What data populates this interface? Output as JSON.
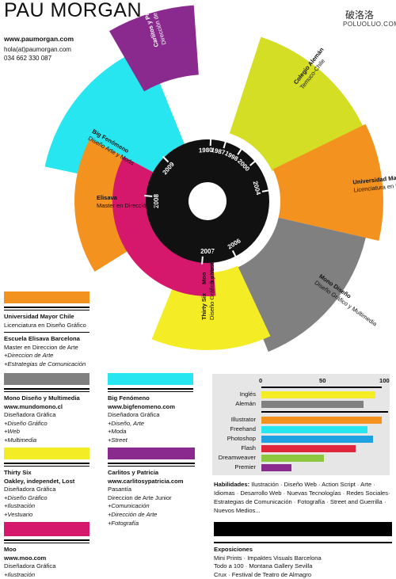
{
  "header": {
    "name": "PAU MORGAN",
    "site": "www.paumorgan.com",
    "email": "hola(at)paumorgan.com",
    "phone": "034 662 330 087"
  },
  "watermark": {
    "line1": "破洛洛",
    "line2": "POLUOLUO.COM"
  },
  "wheel": {
    "years": [
      "1980",
      "1987",
      "1998",
      "2000",
      "2004",
      "2006",
      "2007",
      "2008",
      "2009"
    ],
    "segments": [
      {
        "title": "Carlitos y Patricia",
        "subtitle": "Dirección de Arte y Comunicación",
        "color": "#8b2a8e"
      },
      {
        "title": "Colegio Alemán",
        "subtitle": "Temuco-Chile",
        "color": "#d4de24"
      },
      {
        "title": "Universidad Mayor",
        "subtitle": "Licenciatura en Diseño Gráfico",
        "color": "#f3921f"
      },
      {
        "title": "Mono Diseño",
        "subtitle": "Diseño Gráfico y Multimedia",
        "color": "#808080"
      },
      {
        "title": "Thirty Six",
        "subtitle": "Diseño Gráfico y Vestuario",
        "color": "#f4ec25"
      },
      {
        "title": "Moo",
        "subtitle": "Ilustración",
        "color": "#d6186c"
      },
      {
        "title": "Elisava",
        "subtitle": "Master en Dirección de Arte",
        "color": "#f3921f"
      },
      {
        "title": "Big Fenómeno",
        "subtitle": "Diseño Arte y Moda",
        "color": "#27e6f0"
      }
    ]
  },
  "cards": [
    {
      "color": "#f3921f",
      "lines": [
        "Universidad Mayor Chile",
        "Licenciatura en Diseño Gráfico"
      ],
      "lines2": [
        "Escuela Elisava Barcelona",
        "Master en Direccion de Arte",
        "+Direccion de Arte",
        "+Estrategias de Comunicación"
      ]
    },
    {
      "color": "#808080",
      "lines": [
        "Mono Diseño y Multimedia",
        "www.mundomono.cl",
        "Diseñadora Gráfica",
        "+Diseño Gráfico",
        "+Web",
        "+Multimedia"
      ]
    },
    {
      "color": "#27e6f0",
      "lines": [
        "Big Fenómeno",
        "www.bigfenomeno.com",
        "Diseñadora Gráfica",
        "+Diseño, Arte",
        "+Moda",
        "+Street"
      ]
    },
    {
      "color": "#f4ec25",
      "lines": [
        "Thirty Six",
        "Oakley, independet, Lost",
        "Diseñadora Gráfica",
        "+Diseño Gráfico",
        "+Ilustración",
        "+Vestuario"
      ]
    },
    {
      "color": "#8b2a8e",
      "lines": [
        "Carlitos y Patricia",
        "www.carlitosypatricia.com",
        "Pasantía",
        "Direccion de Arte Junior",
        "+Comunicación",
        "+Dirección de Arte",
        "+Fotografía"
      ]
    },
    {
      "color": "#d6186c",
      "lines": [
        "Moo",
        "www.moo.com",
        "Diseñadora Gráfica",
        "+Ilustración"
      ]
    }
  ],
  "skills": {
    "ticks": [
      "0",
      "50",
      "100"
    ],
    "languages": [
      {
        "name": "Inglés",
        "value": 95,
        "color": "#f4ec25"
      },
      {
        "name": "Alemán",
        "value": 85,
        "color": "#808080"
      }
    ],
    "software": [
      {
        "name": "Illustrator",
        "value": 100,
        "color": "#f3921f"
      },
      {
        "name": "Freehand",
        "value": 88,
        "color": "#27e6f0"
      },
      {
        "name": "Photoshop",
        "value": 93,
        "color": "#1fa0e0"
      },
      {
        "name": "Flash",
        "value": 78,
        "color": "#e0263a"
      },
      {
        "name": "Dreamweaver",
        "value": 52,
        "color": "#8dc63f"
      },
      {
        "name": "Premier",
        "value": 25,
        "color": "#8b2a8e"
      }
    ]
  },
  "habilidades": {
    "label": "Habilidades:",
    "text": " Ilustración · Diseño Web · Action Script · Arte · Idiomas · Desarrollo Web · Nuevas Tecnologías · Redes Sociales· Estrategias de Comunicación · Fotografía · Street and Guerrilla · Nuevos Medios..."
  },
  "exposiciones": {
    "title": "Exposiciones",
    "items": [
      "Mini Prints · Impaktes Visuals Barcelona",
      "Todo a 100 · Montana Gallery Sevilla",
      "Crux · Festival de Teatro de Almagro"
    ]
  }
}
